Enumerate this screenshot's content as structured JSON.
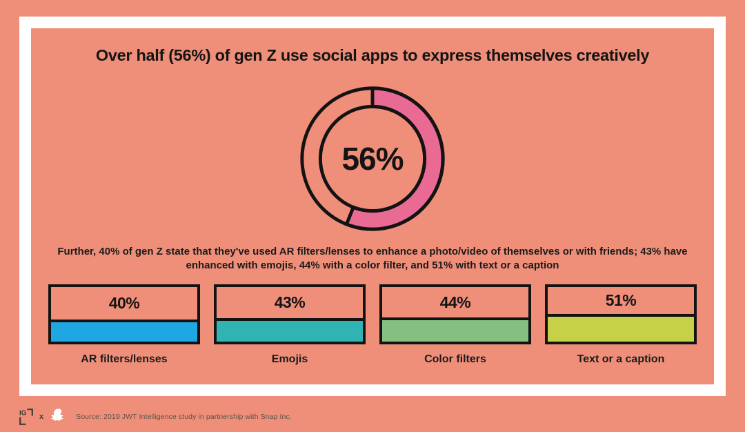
{
  "colors": {
    "background": "#ef8f79",
    "frame": "#ffffff",
    "ink": "#141414",
    "donut_segment": "#e96b94",
    "footer_ink": "#59524c"
  },
  "title": "Over half (56%) of gen Z use social apps to express themselves creatively",
  "donut": {
    "center_label": "56%"
  },
  "subtitle": "Further, 40% of gen Z state that they've used AR filters/lenses to enhance a photo/video of themselves or with friends; 43% have enhanced with emojis, 44% with a color filter, and 51% with text or a caption",
  "bars": {
    "items": [
      {
        "value": 40,
        "value_label": "40%",
        "label": "AR filters/lenses",
        "color": "#1ea7e0"
      },
      {
        "value": 43,
        "value_label": "43%",
        "label": "Emojis",
        "color": "#31b3b4"
      },
      {
        "value": 44,
        "value_label": "44%",
        "label": "Color filters",
        "color": "#85c081"
      },
      {
        "value": 51,
        "value_label": "51%",
        "label": "Text or a caption",
        "color": "#c6d148"
      }
    ]
  },
  "footer": {
    "brand_left": "IG",
    "separator": "x",
    "source": "Source: 2019 JWT Intelligence study in partnership with Snap Inc."
  },
  "chart_data": [
    {
      "type": "pie",
      "subtype": "donut",
      "title": "Over half (56%) of gen Z use social apps to express themselves creatively",
      "values": [
        56,
        44
      ],
      "colors": [
        "#e96b94",
        "#ef8f79"
      ],
      "center_label": "56%",
      "start_angle_deg": 0,
      "direction": "clockwise"
    },
    {
      "type": "bar",
      "categories": [
        "AR filters/lenses",
        "Emojis",
        "Color filters",
        "Text or a caption"
      ],
      "values": [
        40,
        43,
        44,
        51
      ],
      "unit": "%",
      "colors": [
        "#1ea7e0",
        "#31b3b4",
        "#85c081",
        "#c6d148"
      ],
      "ylim": [
        0,
        100
      ],
      "bar_height_encodes_value": true
    }
  ]
}
